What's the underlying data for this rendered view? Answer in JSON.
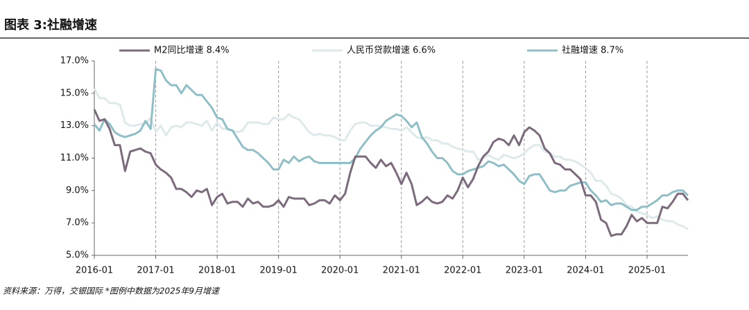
{
  "chart_data": {
    "type": "line",
    "title": "图表 3:社融增速",
    "source": "资料来源：万得，交银国际 *图例中数据为2025年9月增速",
    "categories": [
      "2016-01",
      null,
      null,
      null,
      null,
      null,
      null,
      null,
      null,
      null,
      null,
      null,
      "2017-01",
      null,
      null,
      null,
      null,
      null,
      null,
      null,
      null,
      null,
      null,
      null,
      "2018-01",
      null,
      null,
      null,
      null,
      null,
      null,
      null,
      null,
      null,
      null,
      null,
      "2019-01",
      null,
      null,
      null,
      null,
      null,
      null,
      null,
      null,
      null,
      null,
      null,
      "2020-01",
      null,
      null,
      null,
      null,
      null,
      null,
      null,
      null,
      null,
      null,
      null,
      "2021-01",
      null,
      null,
      null,
      null,
      null,
      null,
      null,
      null,
      null,
      null,
      null,
      "2022-01",
      null,
      null,
      null,
      null,
      null,
      null,
      null,
      null,
      null,
      null,
      null,
      "2023-01",
      null,
      null,
      null,
      null,
      null,
      null,
      null,
      null,
      null,
      null,
      null,
      "2024-01",
      null,
      null,
      null,
      null,
      null,
      null,
      null,
      null,
      null,
      null,
      null,
      "2025-01",
      null,
      null,
      null,
      null,
      null,
      null,
      null,
      null
    ],
    "series": [
      {
        "name": "M2同比增速 8.4%",
        "color": "#7b6a7c",
        "values": [
          14.0,
          13.3,
          13.4,
          12.8,
          11.8,
          11.8,
          10.2,
          11.4,
          11.5,
          11.6,
          11.4,
          11.3,
          10.6,
          10.3,
          10.1,
          9.8,
          9.1,
          9.1,
          8.9,
          8.6,
          9.0,
          8.9,
          9.1,
          8.1,
          8.6,
          8.8,
          8.2,
          8.3,
          8.3,
          8.0,
          8.5,
          8.2,
          8.3,
          8.0,
          8.0,
          8.1,
          8.4,
          8.0,
          8.6,
          8.5,
          8.5,
          8.5,
          8.1,
          8.2,
          8.4,
          8.4,
          8.2,
          8.7,
          8.4,
          8.8,
          10.1,
          11.1,
          11.1,
          11.1,
          10.7,
          10.4,
          10.9,
          10.5,
          10.7,
          10.1,
          9.4,
          10.1,
          9.4,
          8.1,
          8.3,
          8.6,
          8.3,
          8.2,
          8.3,
          8.7,
          8.5,
          9.0,
          9.8,
          9.2,
          9.7,
          10.5,
          11.1,
          11.4,
          12.0,
          12.2,
          12.1,
          11.8,
          12.4,
          11.8,
          12.6,
          12.9,
          12.7,
          12.4,
          11.6,
          11.3,
          10.7,
          10.6,
          10.3,
          10.3,
          10.0,
          9.7,
          8.7,
          8.7,
          8.3,
          7.2,
          7.0,
          6.2,
          6.3,
          6.3,
          6.8,
          7.5,
          7.1,
          7.3,
          7.0,
          7.0,
          7.0,
          8.0,
          7.9,
          8.3,
          8.8,
          8.8,
          8.4
        ]
      },
      {
        "name": "人民币贷款增速 6.6%",
        "color": "#dde9ea",
        "values": [
          15.3,
          14.7,
          14.7,
          14.4,
          14.4,
          14.3,
          13.2,
          13.0,
          13.0,
          13.1,
          13.1,
          13.5,
          12.6,
          13.0,
          12.4,
          12.9,
          13.0,
          12.9,
          13.2,
          13.2,
          13.1,
          13.0,
          13.3,
          12.7,
          13.2,
          12.8,
          12.8,
          12.7,
          12.6,
          12.7,
          13.2,
          13.2,
          13.2,
          13.1,
          13.1,
          13.5,
          13.4,
          13.4,
          13.7,
          13.5,
          13.4,
          13.0,
          12.6,
          12.4,
          12.5,
          12.4,
          12.4,
          12.3,
          12.1,
          12.1,
          12.7,
          13.1,
          13.2,
          13.2,
          13.0,
          13.0,
          13.0,
          12.9,
          12.8,
          12.8,
          12.7,
          12.9,
          12.6,
          12.3,
          12.2,
          12.3,
          12.1,
          12.1,
          11.9,
          11.9,
          11.7,
          11.6,
          11.5,
          11.4,
          11.4,
          10.9,
          11.0,
          11.2,
          11.0,
          10.9,
          11.2,
          11.1,
          11.0,
          11.1,
          11.3,
          11.6,
          11.8,
          11.8,
          11.4,
          11.3,
          11.1,
          11.1,
          10.9,
          10.9,
          10.8,
          10.6,
          10.4,
          10.1,
          9.6,
          9.6,
          9.3,
          8.8,
          8.7,
          8.5,
          8.1,
          8.0,
          7.7,
          7.6,
          7.5,
          7.3,
          7.4,
          7.2,
          7.1,
          7.1,
          6.9,
          6.8,
          6.6
        ]
      },
      {
        "name": "社融增速 8.7%",
        "color": "#8fbfc6",
        "values": [
          13.1,
          12.7,
          13.4,
          13.1,
          12.6,
          12.4,
          12.3,
          12.4,
          12.5,
          12.7,
          13.3,
          12.8,
          16.5,
          16.4,
          15.8,
          15.5,
          15.5,
          15.0,
          15.5,
          15.2,
          14.9,
          14.9,
          14.5,
          14.1,
          13.5,
          13.4,
          12.8,
          12.7,
          12.2,
          11.7,
          11.5,
          11.5,
          11.3,
          11.0,
          10.7,
          10.3,
          10.3,
          10.9,
          10.7,
          11.1,
          10.8,
          11.0,
          11.1,
          10.8,
          10.7,
          10.7,
          10.7,
          10.7,
          10.7,
          10.7,
          10.7,
          11.0,
          11.6,
          12.0,
          12.4,
          12.7,
          12.9,
          13.3,
          13.5,
          13.7,
          13.6,
          13.3,
          12.9,
          13.2,
          12.3,
          11.9,
          11.4,
          11.0,
          11.0,
          10.7,
          10.2,
          10.0,
          10.0,
          10.2,
          10.3,
          10.4,
          10.5,
          10.8,
          10.7,
          10.5,
          10.6,
          10.3,
          10.0,
          9.6,
          9.4,
          9.9,
          10.0,
          10.0,
          9.5,
          9.0,
          8.9,
          9.0,
          9.0,
          9.3,
          9.4,
          9.5,
          9.5,
          9.0,
          8.7,
          8.3,
          8.4,
          8.1,
          8.2,
          8.2,
          8.0,
          7.8,
          7.8,
          8.0,
          8.0,
          8.2,
          8.4,
          8.7,
          8.7,
          8.9,
          9.0,
          9.0,
          8.7
        ]
      }
    ],
    "ylim": [
      5,
      17
    ],
    "yticks": [
      {
        "value": 5,
        "label": "5.0%"
      },
      {
        "value": 7,
        "label": "7.0%"
      },
      {
        "value": 9,
        "label": "9.0%"
      },
      {
        "value": 11,
        "label": "11.0%"
      },
      {
        "value": 13,
        "label": "13.0%"
      },
      {
        "value": 15,
        "label": "15.0%"
      },
      {
        "value": 17,
        "label": "17.0%"
      }
    ],
    "grid": "x"
  }
}
